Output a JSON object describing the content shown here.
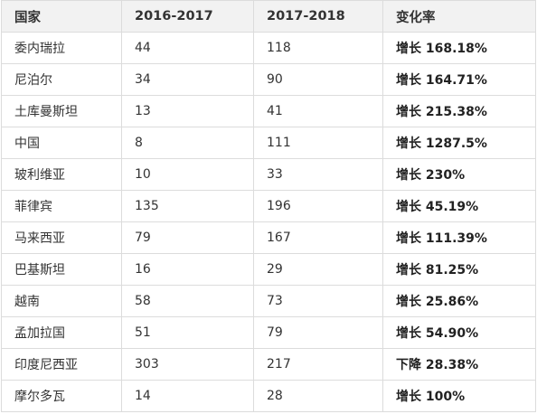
{
  "table": {
    "headers": [
      "国家",
      "2016-2017",
      "2017-2018",
      "变化率"
    ],
    "rows": [
      [
        "委内瑞拉",
        "44",
        "118",
        "增长 168.18%"
      ],
      [
        "尼泊尔",
        "34",
        "90",
        "增长 164.71%"
      ],
      [
        "土库曼斯坦",
        "13",
        "41",
        "增长 215.38%"
      ],
      [
        "中国",
        "8",
        "111",
        "增长 1287.5%"
      ],
      [
        "玻利维亚",
        "10",
        "33",
        "增长 230%"
      ],
      [
        "菲律宾",
        "135",
        "196",
        "增长 45.19%"
      ],
      [
        "马来西亚",
        "79",
        "167",
        "增长 111.39%"
      ],
      [
        "巴基斯坦",
        "16",
        "29",
        "增长 81.25%"
      ],
      [
        "越南",
        "58",
        "73",
        "增长 25.86%"
      ],
      [
        "孟加拉国",
        "51",
        "79",
        "增长 54.90%"
      ],
      [
        "印度尼西亚",
        "303",
        "217",
        "下降 28.38%"
      ],
      [
        "摩尔多瓦",
        "14",
        "28",
        "增长 100%"
      ]
    ]
  }
}
